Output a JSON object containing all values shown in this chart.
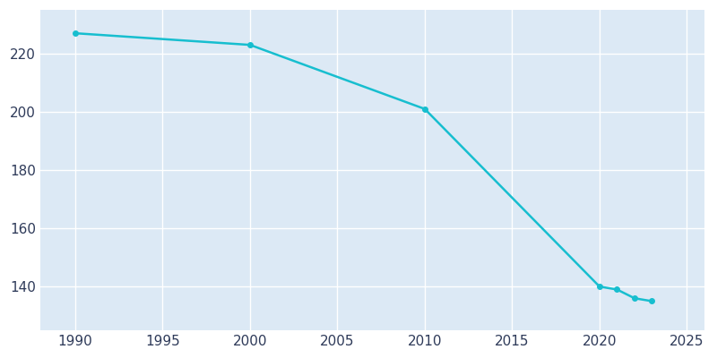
{
  "years": [
    1990,
    2000,
    2010,
    2020,
    2021,
    2022,
    2023
  ],
  "population": [
    227,
    223,
    201,
    140,
    139,
    136,
    135
  ],
  "line_color": "#17becf",
  "marker_color": "#17becf",
  "plot_background_color": "#dce9f5",
  "fig_background_color": "#ffffff",
  "xlim": [
    1988,
    2026
  ],
  "ylim": [
    125,
    235
  ],
  "xticks": [
    1990,
    1995,
    2000,
    2005,
    2010,
    2015,
    2020,
    2025
  ],
  "yticks": [
    140,
    160,
    180,
    200,
    220
  ],
  "grid_color": "#ffffff",
  "tick_label_color": "#2e3a59",
  "tick_fontsize": 11,
  "linewidth": 1.8,
  "marker_size": 4
}
